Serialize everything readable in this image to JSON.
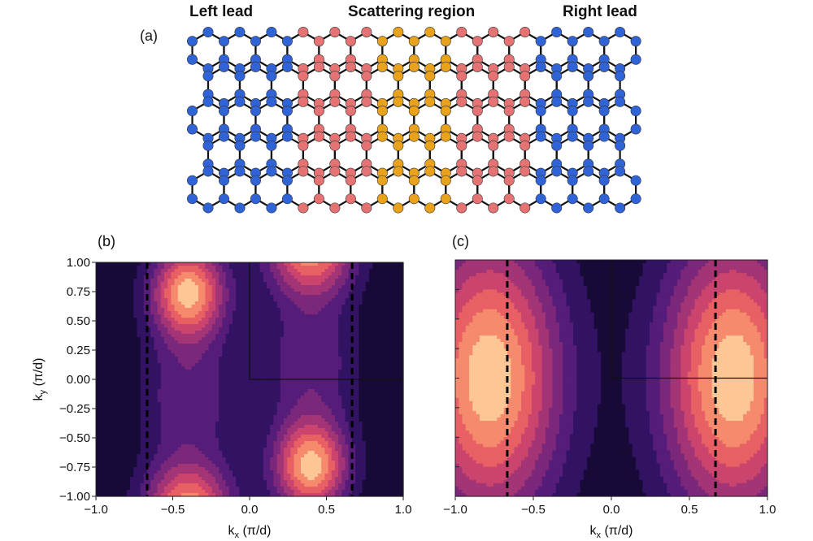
{
  "figure": {
    "panel_a": {
      "label": "(a)",
      "titles": {
        "left": "Left lead",
        "center": "Scattering region",
        "right": "Right lead"
      },
      "colors": {
        "lead_atom": "#2f63d6",
        "scatter_atom": "#e57373",
        "interface_atom": "#e8a21c",
        "bond": "#111111"
      }
    },
    "panel_b": {
      "label": "(b)"
    },
    "panel_c": {
      "label": "(c)"
    }
  },
  "chart_data": [
    {
      "type": "heatmap",
      "panel": "(b)",
      "xlabel": "k",
      "xlabel_sub": "x",
      "xlabel_unit": " (π/d)",
      "ylabel": "k",
      "ylabel_sub": "y",
      "ylabel_unit": " (π/d)",
      "xlim": [
        -1.0,
        1.0
      ],
      "ylim": [
        -1.0,
        1.0
      ],
      "xticks": [
        "−1.0",
        "−0.5",
        "0.0",
        "0.5",
        "1.0"
      ],
      "xtick_values": [
        -1.0,
        -0.5,
        0.0,
        0.5,
        1.0
      ],
      "yticks": [
        "1.00",
        "0.75",
        "0.50",
        "0.25",
        "0.00",
        "−0.25",
        "−0.50",
        "−0.75",
        "−1.00"
      ],
      "ytick_values": [
        1.0,
        0.75,
        0.5,
        0.25,
        0.0,
        -0.25,
        -0.5,
        -0.75,
        -1.0
      ],
      "dashed_lines_x": [
        -0.667,
        0.667
      ],
      "quadrant_box": {
        "x": [
          0.0,
          1.0
        ],
        "y": [
          0.0,
          1.0
        ]
      },
      "maxima": [
        [
          -0.4,
          0.75
        ],
        [
          0.4,
          -0.75
        ]
      ],
      "colormap": "magma",
      "levels": 9
    },
    {
      "type": "heatmap",
      "panel": "(c)",
      "xlabel": "k",
      "xlabel_sub": "x",
      "xlabel_unit": " (π/d)",
      "xlim": [
        -1.0,
        1.0
      ],
      "ylim": [
        -1.0,
        1.0
      ],
      "xticks": [
        "−1.0",
        "−0.5",
        "0.0",
        "0.5",
        "1.0"
      ],
      "xtick_values": [
        -1.0,
        -0.5,
        0.0,
        0.5,
        1.0
      ],
      "dashed_lines_x": [
        -0.667,
        0.667
      ],
      "quadrant_box": {
        "x": [
          0.0,
          1.0
        ],
        "y": [
          0.0,
          1.0
        ]
      },
      "maxima": [
        [
          -0.78,
          0.0
        ],
        [
          0.78,
          0.0
        ]
      ],
      "colormap": "magma",
      "levels": 9
    }
  ]
}
